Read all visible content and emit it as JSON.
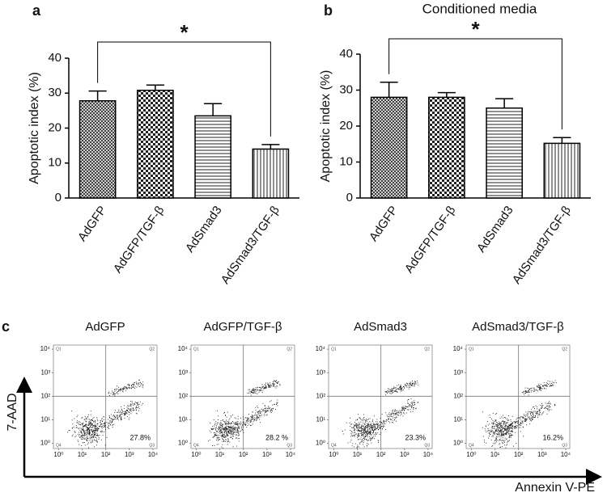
{
  "chart_data": [
    {
      "type": "bar",
      "panel_label": "a",
      "ylabel": "Apoptotic index (%)",
      "categories": [
        "AdGFP",
        "AdGFP/TGF-β",
        "AdSmad3",
        "AdSmad3/TGF-β"
      ],
      "values": [
        27.8,
        30.8,
        23.5,
        14.0
      ],
      "errors": [
        2.8,
        1.5,
        3.5,
        1.3
      ],
      "ylim": [
        0,
        40
      ],
      "yticks": [
        0,
        10,
        20,
        30,
        40
      ],
      "significance_label": "*"
    },
    {
      "type": "bar",
      "panel_label": "b",
      "title": "Conditioned media",
      "ylabel": "Apoptotic index (%)",
      "categories": [
        "AdGFP",
        "AdGFP/TGF-β",
        "AdSmad3",
        "AdSmad3/TGF-β"
      ],
      "values": [
        28.0,
        28.0,
        25.0,
        15.2
      ],
      "errors": [
        4.2,
        1.3,
        2.6,
        1.6
      ],
      "ylim": [
        0,
        40
      ],
      "yticks": [
        0,
        10,
        20,
        30,
        40
      ],
      "significance_label": "*"
    },
    {
      "type": "flow",
      "panel_label": "c",
      "xlabel": "Annexin V-PE",
      "ylabel": "7-AAD",
      "log_scale": true,
      "xlim": [
        0.6,
        15000
      ],
      "ylim": [
        0.6,
        15000
      ],
      "xticks": [
        {
          "value": 1,
          "label": "10⁰"
        },
        {
          "value": 10,
          "label": "10¹"
        },
        {
          "value": 100,
          "label": "10²"
        },
        {
          "value": 1000,
          "label": "10³"
        },
        {
          "value": 10000,
          "label": "10⁴"
        }
      ],
      "yticks": [
        {
          "value": 1,
          "label": "10⁰"
        },
        {
          "value": 10,
          "label": "10¹"
        },
        {
          "value": 100,
          "label": "10²"
        },
        {
          "value": 1000,
          "label": "10³"
        },
        {
          "value": 10000,
          "label": "10⁴"
        }
      ],
      "quadrant_gate": {
        "x": 100,
        "y": 100
      },
      "quadrant_names": [
        "Q1",
        "Q2",
        "Q3",
        "Q4"
      ],
      "plots": [
        {
          "title": "AdGFP",
          "value": 27.8,
          "value_label": "27.8%"
        },
        {
          "title": "AdGFP/TGF-β",
          "value": 28.2,
          "value_label": "28.2 %"
        },
        {
          "title": "AdSmad3",
          "value": 23.3,
          "value_label": "23.3%"
        },
        {
          "title": "AdSmad3/TGF-β",
          "value": 16.2,
          "value_label": "16.2%"
        }
      ]
    }
  ]
}
